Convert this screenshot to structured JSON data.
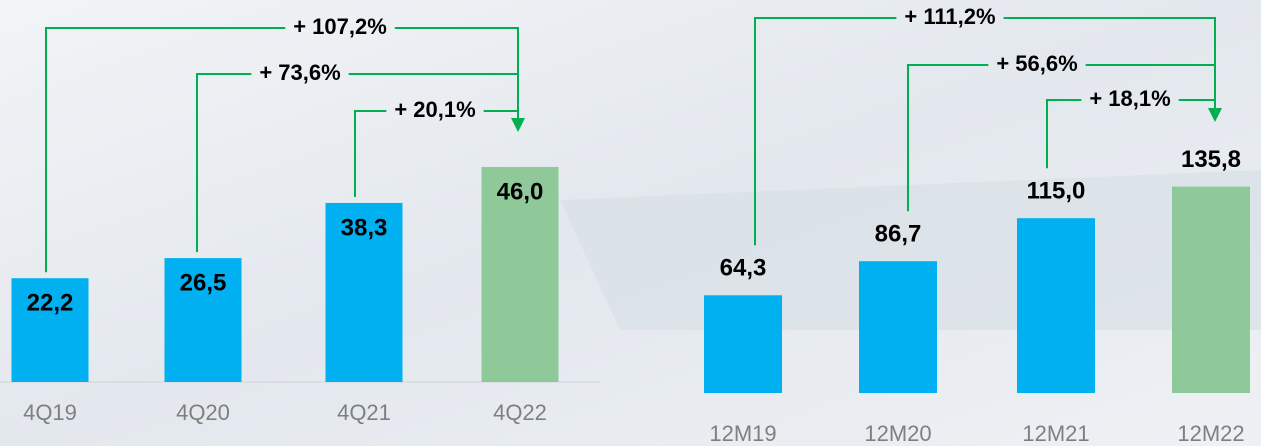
{
  "chart_data": [
    {
      "type": "bar",
      "categories": [
        "4Q19",
        "4Q20",
        "4Q21",
        "4Q22"
      ],
      "values": [
        22.2,
        26.5,
        38.3,
        46.0
      ],
      "value_labels": [
        "22,2",
        "26,5",
        "38,3",
        "46,0"
      ],
      "colors": [
        "#00b0f0",
        "#00b0f0",
        "#00b0f0",
        "#8fc99a"
      ],
      "value_label_position": "inside",
      "ylim": [
        0,
        80
      ],
      "annotations": [
        "+ 107,2%",
        "+ 73,6%",
        "+ 20,1%"
      ]
    },
    {
      "type": "bar",
      "categories": [
        "12M19",
        "12M20",
        "12M21",
        "12M22"
      ],
      "values": [
        64.3,
        86.7,
        115.0,
        135.8
      ],
      "value_labels": [
        "64,3",
        "86,7",
        "115,0",
        "135,8"
      ],
      "colors": [
        "#00b0f0",
        "#00b0f0",
        "#00b0f0",
        "#8fc99a"
      ],
      "value_label_position": "above",
      "ylim": [
        0,
        250
      ],
      "annotations": [
        "+ 111,2%",
        "+ 56,6%",
        "+ 18,1%"
      ]
    }
  ]
}
